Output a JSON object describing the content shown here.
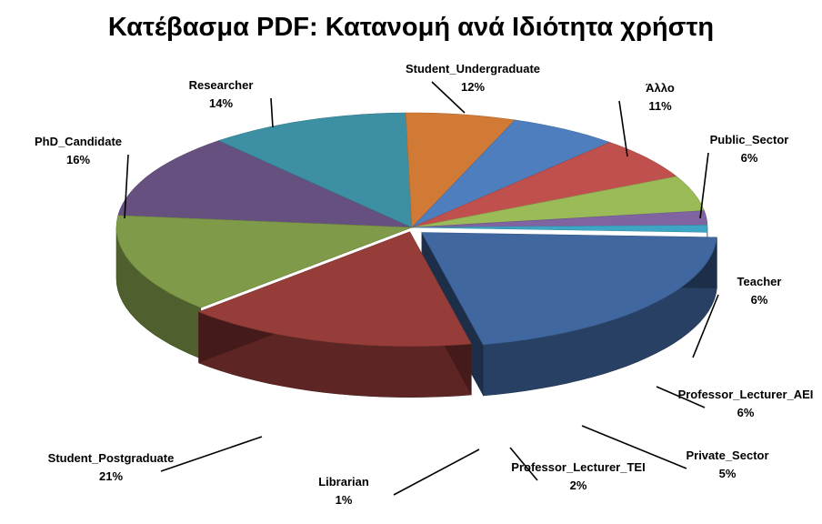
{
  "chart_data": {
    "type": "pie",
    "style": "3d-exploded",
    "title": "Κατέβασμα PDF: Κατανομή ανά Ιδιότητα χρήστη",
    "legend": "none",
    "data_labels": "category-and-percent",
    "slices": [
      {
        "name": "Student_Undergraduate",
        "value": 12,
        "label": "12%",
        "color": "#65507F"
      },
      {
        "name": "Άλλο",
        "value": 11,
        "label": "11%",
        "color": "#3D8FA3"
      },
      {
        "name": "Public_Sector",
        "value": 6,
        "label": "6%",
        "color": "#D07A35"
      },
      {
        "name": "Teacher",
        "value": 6,
        "label": "6%",
        "color": "#4F7EBE"
      },
      {
        "name": "Professor_Lecturer_AEI",
        "value": 6,
        "label": "6%",
        "color": "#C0504D"
      },
      {
        "name": "Private_Sector",
        "value": 5,
        "label": "5%",
        "color": "#9BBB59"
      },
      {
        "name": "Professor_Lecturer_TEI",
        "value": 2,
        "label": "2%",
        "color": "#8064A2"
      },
      {
        "name": "Librarian",
        "value": 1,
        "label": "1%",
        "color": "#3EA6C4"
      },
      {
        "name": "Student_Postgraduate",
        "value": 21,
        "label": "21%",
        "color": "#40679F"
      },
      {
        "name": "PhD_Candidate",
        "value": 16,
        "label": "16%",
        "color": "#963D3A"
      },
      {
        "name": "Researcher",
        "value": 14,
        "label": "14%",
        "color": "#7F9A48"
      }
    ]
  }
}
